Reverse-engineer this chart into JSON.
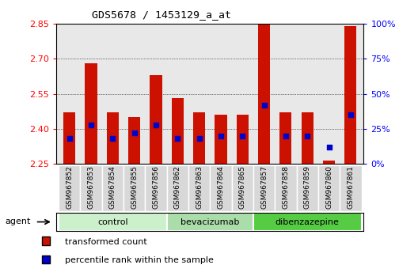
{
  "title": "GDS5678 / 1453129_a_at",
  "samples": [
    "GSM967852",
    "GSM967853",
    "GSM967854",
    "GSM967855",
    "GSM967856",
    "GSM967862",
    "GSM967863",
    "GSM967864",
    "GSM967865",
    "GSM967857",
    "GSM967858",
    "GSM967859",
    "GSM967860",
    "GSM967861"
  ],
  "transformed_count": [
    2.47,
    2.68,
    2.47,
    2.45,
    2.63,
    2.53,
    2.47,
    2.46,
    2.46,
    2.855,
    2.47,
    2.47,
    2.265,
    2.84
  ],
  "percentile_rank": [
    18,
    28,
    18,
    22,
    28,
    18,
    18,
    20,
    20,
    42,
    20,
    20,
    12,
    35
  ],
  "groups": [
    {
      "name": "control",
      "start": 0,
      "end": 5
    },
    {
      "name": "bevacizumab",
      "start": 5,
      "end": 9
    },
    {
      "name": "dibenzazepine",
      "start": 9,
      "end": 14
    }
  ],
  "group_colors": [
    "#ccf0cc",
    "#aaddaa",
    "#55cc44"
  ],
  "ylim": [
    2.25,
    2.85
  ],
  "y_ticks": [
    2.25,
    2.4,
    2.55,
    2.7,
    2.85
  ],
  "right_ylim": [
    0,
    100
  ],
  "right_yticks": [
    0,
    25,
    50,
    75,
    100
  ],
  "bar_color": "#cc1100",
  "dot_color": "#0000cc",
  "bar_width": 0.55,
  "plot_bg_color": "#e8e8e8"
}
